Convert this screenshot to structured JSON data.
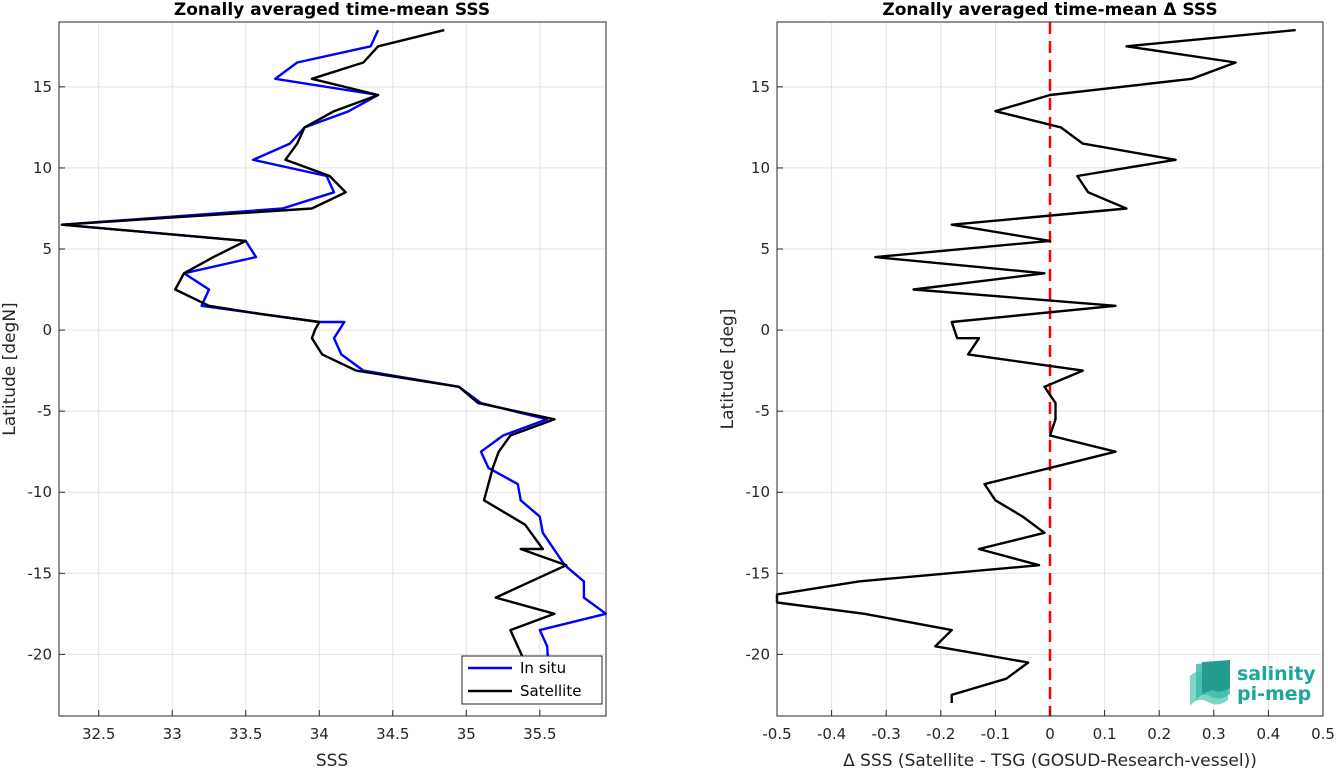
{
  "chart_data": [
    {
      "type": "line",
      "title": "Zonally averaged time-mean SSS",
      "xlabel": "SSS",
      "ylabel": "Latitude [degN]",
      "xlim": [
        32.23,
        35.95
      ],
      "ylim": [
        -23.8,
        19.0
      ],
      "xticks": [
        32.5,
        33,
        33.5,
        34,
        34.5,
        35,
        35.5
      ],
      "xtick_labels": [
        "32.5",
        "33",
        "33.5",
        "34",
        "34.5",
        "35",
        "35.5"
      ],
      "yticks": [
        -20,
        -15,
        -10,
        -5,
        0,
        5,
        10,
        15
      ],
      "ytick_labels": [
        "-20",
        "-15",
        "-10",
        "-5",
        "0",
        "5",
        "10",
        "15"
      ],
      "grid": true,
      "legend": "bottom-right",
      "series": [
        {
          "name": "In situ",
          "color": "#0000ff",
          "x": [
            34.4,
            34.35,
            33.85,
            33.7,
            34.4,
            34.2,
            33.9,
            33.8,
            33.55,
            34.05,
            34.1,
            33.75,
            32.25,
            33.5,
            33.57,
            33.08,
            33.25,
            33.2,
            33.6,
            34.0,
            34.17,
            34.1,
            34.15,
            34.3,
            34.95,
            35.1,
            35.55,
            35.25,
            35.1,
            35.15,
            35.35,
            35.37,
            35.5,
            35.52,
            35.67,
            35.8,
            35.8,
            35.95,
            35.5,
            35.55,
            35.57
          ],
          "y": [
            18.5,
            17.5,
            16.5,
            15.5,
            14.5,
            13.5,
            12.5,
            11.5,
            10.5,
            9.5,
            8.5,
            7.5,
            6.5,
            5.5,
            4.5,
            3.5,
            2.5,
            1.5,
            1.0,
            0.5,
            0.5,
            -0.5,
            -1.5,
            -2.5,
            -3.5,
            -4.5,
            -5.5,
            -6.5,
            -7.5,
            -8.5,
            -9.5,
            -10.5,
            -11.5,
            -12.5,
            -14.5,
            -15.5,
            -16.5,
            -17.5,
            -18.5,
            -19.5,
            -22.5
          ]
        },
        {
          "name": "Satellite",
          "color": "#000000",
          "x": [
            34.85,
            34.4,
            34.3,
            33.95,
            34.4,
            34.1,
            33.9,
            33.85,
            33.77,
            34.07,
            34.18,
            33.95,
            32.25,
            33.5,
            33.28,
            33.08,
            33.02,
            33.25,
            33.6,
            34.0,
            33.97,
            33.95,
            34.02,
            34.25,
            34.95,
            35.08,
            35.6,
            35.3,
            35.22,
            35.18,
            35.12,
            35.4,
            35.52,
            35.37,
            35.68,
            35.2,
            35.6,
            35.3,
            35.4,
            35.37
          ],
          "y": [
            18.5,
            17.5,
            16.5,
            15.5,
            14.5,
            13.5,
            12.5,
            11.5,
            10.5,
            9.5,
            8.5,
            7.5,
            6.5,
            5.5,
            4.5,
            3.5,
            2.5,
            1.5,
            1.0,
            0.5,
            0.0,
            -0.5,
            -1.5,
            -2.5,
            -3.5,
            -4.5,
            -5.5,
            -6.5,
            -7.5,
            -8.5,
            -10.5,
            -12.0,
            -13.5,
            -13.5,
            -14.5,
            -16.5,
            -17.5,
            -18.5,
            -20.5,
            -22.5
          ]
        }
      ]
    },
    {
      "type": "line",
      "title": "Zonally averaged time-mean Δ SSS",
      "xlabel": "Δ SSS (Satellite - TSG (GOSUD-Research-vessel))",
      "ylabel": "Latitude [deg]",
      "xlim": [
        -0.5,
        0.5
      ],
      "ylim": [
        -23.8,
        19.0
      ],
      "xticks": [
        -0.5,
        -0.4,
        -0.3,
        -0.2,
        -0.1,
        0,
        0.1,
        0.2,
        0.3,
        0.4,
        0.5
      ],
      "xtick_labels": [
        "-0.5",
        "-0.4",
        "-0.3",
        "-0.2",
        "-0.1",
        "0",
        "0.1",
        "0.2",
        "0.3",
        "0.4",
        "0.5"
      ],
      "yticks": [
        -20,
        -15,
        -10,
        -5,
        0,
        5,
        10,
        15
      ],
      "ytick_labels": [
        "-20",
        "-15",
        "-10",
        "-5",
        "0",
        "5",
        "10",
        "15"
      ],
      "grid": true,
      "reference_line": {
        "x": 0,
        "color": "#ff0000",
        "style": "dashed"
      },
      "series": [
        {
          "color": "#000000",
          "x": [
            0.45,
            0.14,
            0.34,
            0.26,
            0.0,
            -0.1,
            0.02,
            0.06,
            0.23,
            0.05,
            0.07,
            0.14,
            -0.18,
            0.0,
            -0.32,
            -0.01,
            -0.25,
            0.12,
            -0.18,
            -0.17,
            -0.13,
            -0.15,
            0.06,
            -0.01,
            0.0,
            0.01,
            0.01,
            0.0,
            0.12,
            0.0,
            -0.12,
            -0.1,
            -0.05,
            -0.01,
            -0.13,
            -0.02,
            -0.35,
            -0.5,
            -0.5,
            -0.34,
            -0.18,
            -0.21,
            -0.04,
            -0.08,
            -0.18,
            -0.18
          ],
          "y": [
            18.5,
            17.5,
            16.5,
            15.5,
            14.5,
            13.5,
            12.5,
            11.5,
            10.5,
            9.5,
            8.5,
            7.5,
            6.5,
            5.5,
            4.5,
            3.5,
            2.5,
            1.5,
            0.5,
            -0.5,
            -0.5,
            -1.5,
            -2.5,
            -3.5,
            -4.0,
            -4.5,
            -5.5,
            -6.5,
            -7.5,
            -8.5,
            -9.5,
            -10.5,
            -11.5,
            -12.5,
            -13.5,
            -14.5,
            -15.5,
            -16.3,
            -16.8,
            -17.5,
            -18.5,
            -19.5,
            -20.5,
            -21.5,
            -22.5,
            -23.0
          ]
        }
      ]
    }
  ],
  "logo": {
    "line1": "salinity",
    "line2": "pi-mep"
  }
}
